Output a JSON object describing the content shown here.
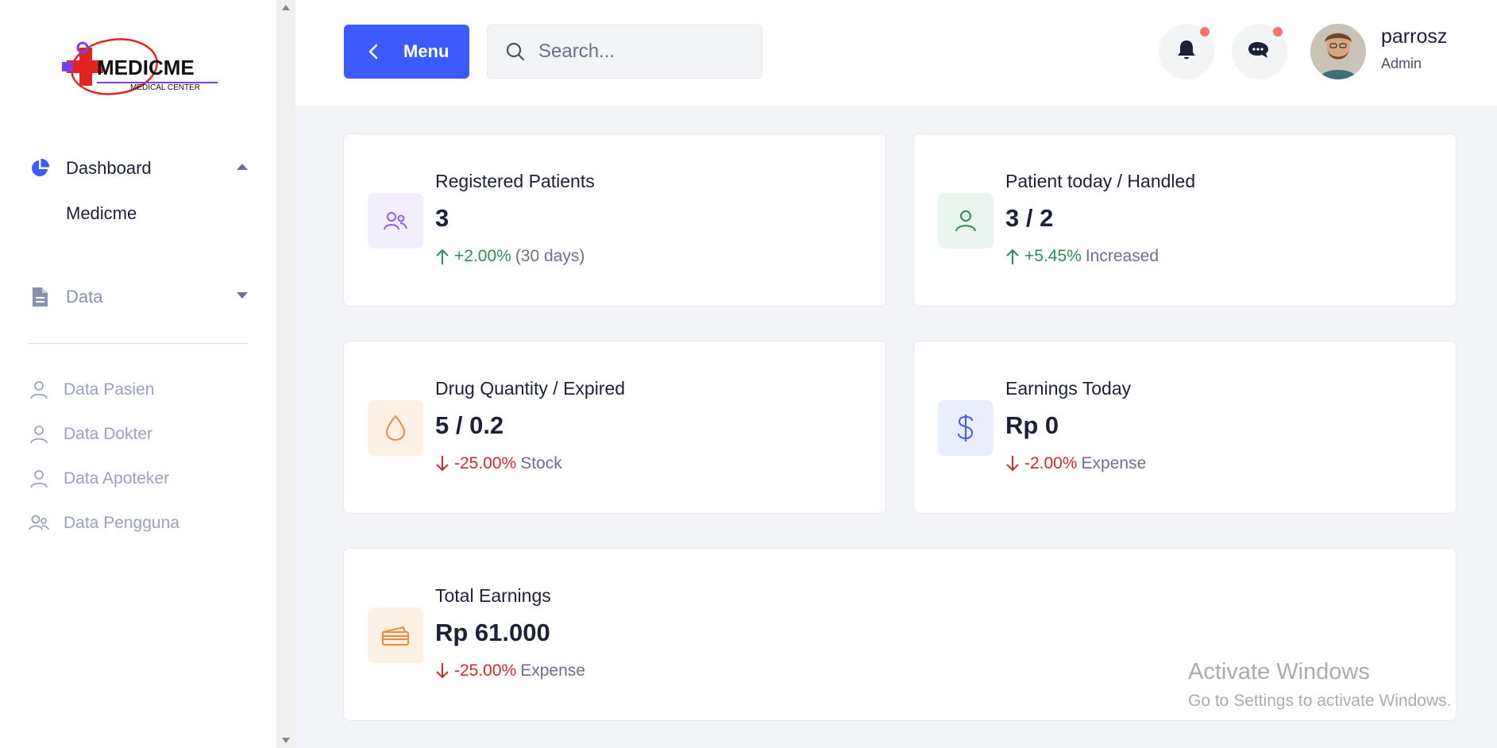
{
  "sidebar": {
    "logo": {
      "name": "MEDICME",
      "tagline": "MEDICAL CENTER"
    },
    "dashboard_label": "Dashboard",
    "dashboard_sub": "Medicme",
    "data_label": "Data",
    "items": [
      {
        "label": "Data Pasien",
        "icon": "user-icon"
      },
      {
        "label": "Data Dokter",
        "icon": "user-icon"
      },
      {
        "label": "Data Apoteker",
        "icon": "user-icon"
      },
      {
        "label": "Data Pengguna",
        "icon": "users-icon"
      }
    ]
  },
  "header": {
    "menu_label": "Menu",
    "search_placeholder": "Search...",
    "search_value": "",
    "user": {
      "name": "parrosz",
      "role": "Admin"
    }
  },
  "cards": [
    {
      "title": "Registered Patients",
      "value": "3",
      "trend": "+2.00%",
      "trend_dir": "up",
      "suffix": "(30 days)",
      "icon": "users-icon",
      "icon_color": "#8b5cf6",
      "icon_bg": "#f3eefc"
    },
    {
      "title": "Patient today / Handled",
      "value": "3 / 2",
      "trend": "+5.45%",
      "trend_dir": "up",
      "suffix": "Increased",
      "icon": "user-icon",
      "icon_color": "#2e8b57",
      "icon_bg": "#e9f5ee"
    },
    {
      "title": "Drug Quantity / Expired",
      "value": "5 / 0.2",
      "trend": "-25.00%",
      "trend_dir": "down",
      "suffix": "Stock",
      "icon": "drop-icon",
      "icon_color": "#ef8a3c",
      "icon_bg": "#fdf1e6"
    },
    {
      "title": "Earnings Today",
      "value": "Rp 0",
      "trend": "-2.00%",
      "trend_dir": "down",
      "suffix": "Expense",
      "icon": "dollar-icon",
      "icon_color": "#3b5bfd",
      "icon_bg": "#eaedfd"
    },
    {
      "title": "Total Earnings",
      "value": "Rp 61.000",
      "trend": "-25.00%",
      "trend_dir": "down",
      "suffix": "Expense",
      "icon": "card-icon",
      "icon_color": "#ef8a3c",
      "icon_bg": "#fdf1e6"
    }
  ],
  "watermark": {
    "title": "Activate Windows",
    "subtitle": "Go to Settings to activate Windows."
  },
  "colors": {
    "accent": "#3b5bfd",
    "trend_up": "#2e8b57",
    "trend_down": "#d02b2b",
    "notification_dot": "#f87171"
  }
}
